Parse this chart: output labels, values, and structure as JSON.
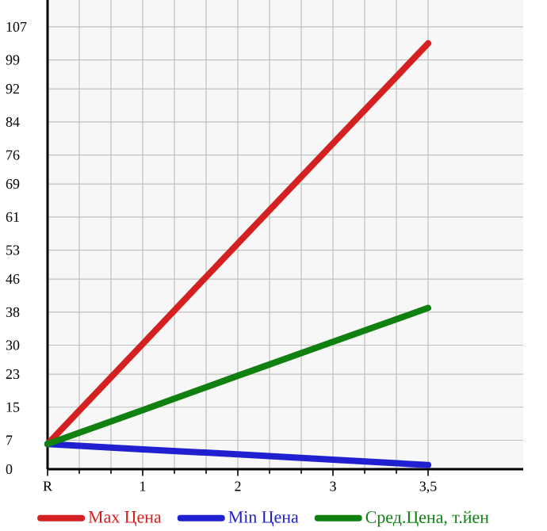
{
  "chart_data": {
    "type": "line",
    "categories": [
      "R",
      "1",
      "2",
      "3",
      "3,5"
    ],
    "series": [
      {
        "name": "Max Цена",
        "color": "#d42020",
        "values": [
          6.1,
          30.3,
          54.6,
          78.8,
          103
        ]
      },
      {
        "name": "Min Цена",
        "color": "#2020d0",
        "values": [
          6.1,
          4.8,
          3.6,
          2.3,
          1.0
        ]
      },
      {
        "name": "Сред.Цена, т.йен",
        "color": "#108010",
        "values": [
          6.1,
          14.3,
          22.6,
          30.8,
          39
        ]
      }
    ],
    "ylim": [
      0,
      113.5
    ],
    "yticks": [
      0,
      7,
      15,
      23,
      30,
      38,
      46,
      53,
      61,
      69,
      76,
      84,
      92,
      99,
      107
    ],
    "grid": true,
    "legend": "bottom"
  }
}
